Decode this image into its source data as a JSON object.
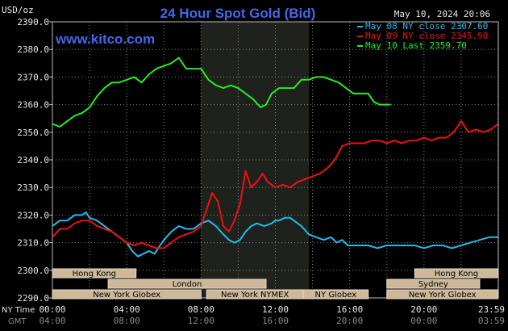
{
  "chart_data": {
    "type": "line",
    "title": "24 Hour Spot Gold (Bid)",
    "watermark": "www.kitco.com",
    "date_label": "May 10, 2024 20:06",
    "y_unit": "USD/oz",
    "ylim": [
      2290,
      2390
    ],
    "y_ticks": [
      "2390.0",
      "2380.0",
      "2370.0",
      "2360.0",
      "2350.0",
      "2340.0",
      "2330.0",
      "2320.0",
      "2310.0",
      "2300.0",
      "2290.0"
    ],
    "x_row1_label": "NY Time",
    "x_row2_label": "GMT",
    "x_ticks_ny": [
      "00:00",
      "04:00",
      "08:00",
      "12:00",
      "16:00",
      "20:00",
      "23:59"
    ],
    "x_ticks_gmt": [
      "04:00",
      "08:00",
      "12:00",
      "16:00",
      "20:00",
      "00:00",
      "03:59"
    ],
    "x_tick_hours": [
      0,
      4,
      8,
      12,
      16,
      20,
      23.983
    ],
    "xlim": [
      0,
      24
    ],
    "shaded_hours": [
      8,
      12,
      13.8
    ],
    "grid": true,
    "legend_position": "top-right",
    "series": [
      {
        "name": "May 08 NY close 2307.60",
        "color": "#22bbee",
        "x": [
          0,
          0.4,
          0.8,
          1.2,
          1.6,
          1.8,
          2.0,
          2.4,
          2.8,
          3.2,
          3.6,
          4.0,
          4.3,
          4.6,
          4.9,
          5.2,
          5.5,
          5.8,
          6.0,
          6.4,
          6.8,
          7.2,
          7.6,
          8.0,
          8.4,
          8.8,
          9.2,
          9.5,
          9.8,
          10.1,
          10.4,
          10.7,
          11.0,
          11.4,
          11.8,
          12.0,
          12.2,
          12.5,
          12.8,
          13.0,
          13.4,
          13.8,
          14.2,
          14.6,
          15.0,
          15.3,
          15.6,
          15.9,
          16.2,
          16.6,
          17.0,
          17.5,
          18.0,
          18.5,
          19.0,
          19.5,
          20.0,
          20.5,
          21.0,
          21.5,
          22.0,
          22.5,
          23.0,
          23.5,
          23.98
        ],
        "y": [
          2316,
          2318,
          2318,
          2320,
          2320,
          2321,
          2319,
          2318,
          2316,
          2314,
          2312,
          2310,
          2307,
          2305,
          2306,
          2307,
          2306,
          2309,
          2311,
          2314,
          2316,
          2315,
          2315,
          2317,
          2318,
          2316,
          2313,
          2311,
          2310,
          2311,
          2314,
          2316,
          2317,
          2316,
          2317,
          2318,
          2318,
          2319,
          2319,
          2318,
          2316,
          2313,
          2312,
          2311,
          2312,
          2310,
          2311,
          2309,
          2309,
          2309,
          2309,
          2308,
          2309,
          2309,
          2309,
          2309,
          2308,
          2309,
          2309,
          2308,
          2309,
          2310,
          2311,
          2312,
          2312
        ]
      },
      {
        "name": "May 09 NY close 2345.90",
        "color": "#ee1111",
        "x": [
          0,
          0.4,
          0.8,
          1.2,
          1.6,
          2.0,
          2.4,
          2.8,
          3.2,
          3.6,
          4.0,
          4.4,
          4.8,
          5.2,
          5.6,
          6.0,
          6.4,
          6.8,
          7.2,
          7.6,
          8.0,
          8.3,
          8.6,
          8.9,
          9.2,
          9.5,
          9.8,
          10.1,
          10.4,
          10.7,
          11.0,
          11.3,
          11.6,
          12.0,
          12.4,
          12.8,
          13.2,
          13.6,
          14.0,
          14.4,
          14.8,
          15.2,
          15.6,
          16.0,
          16.4,
          16.8,
          17.2,
          17.6,
          18.0,
          18.4,
          18.8,
          19.2,
          19.6,
          20.0,
          20.4,
          20.8,
          21.2,
          21.6,
          22.0,
          22.4,
          22.8,
          23.2,
          23.6,
          23.98
        ],
        "y": [
          2312,
          2315,
          2315,
          2317,
          2318,
          2318,
          2316,
          2315,
          2314,
          2312,
          2310,
          2309,
          2310,
          2309,
          2308,
          2308,
          2310,
          2312,
          2313,
          2314,
          2316,
          2322,
          2328,
          2325,
          2316,
          2314,
          2318,
          2324,
          2336,
          2330,
          2332,
          2335,
          2332,
          2330,
          2331,
          2330,
          2332,
          2333,
          2334,
          2335,
          2337,
          2340,
          2345,
          2346,
          2346,
          2346,
          2347,
          2347,
          2346,
          2347,
          2346,
          2347,
          2347,
          2348,
          2347,
          2348,
          2348,
          2350,
          2354,
          2350,
          2351,
          2350,
          2351,
          2353
        ]
      },
      {
        "name": "May 10 Last 2359.70",
        "color": "#22ee22",
        "x": [
          0,
          0.4,
          0.8,
          1.2,
          1.6,
          2.0,
          2.4,
          2.8,
          3.2,
          3.6,
          4.0,
          4.4,
          4.8,
          5.2,
          5.6,
          6.0,
          6.4,
          6.8,
          7.2,
          7.6,
          8.0,
          8.4,
          8.8,
          9.2,
          9.6,
          10.0,
          10.4,
          10.8,
          11.2,
          11.5,
          11.8,
          12.2,
          12.6,
          13.0,
          13.4,
          13.8,
          14.2,
          14.6,
          15.0,
          15.4,
          15.8,
          16.2,
          16.6,
          17.0,
          17.3,
          17.6,
          18.0,
          18.2
        ],
        "y": [
          2353,
          2352,
          2354,
          2356,
          2357,
          2359,
          2363,
          2366,
          2368,
          2368,
          2369,
          2370,
          2368,
          2371,
          2373,
          2374,
          2375,
          2377,
          2373,
          2373,
          2373,
          2369,
          2367,
          2366,
          2367,
          2366,
          2364,
          2362,
          2359,
          2360,
          2364,
          2366,
          2366,
          2366,
          2369,
          2369,
          2370,
          2370,
          2369,
          2368,
          2366,
          2364,
          2364,
          2364,
          2361,
          2360,
          2360,
          2360
        ]
      }
    ],
    "sessions": [
      {
        "label": "Hong Kong",
        "row": 0,
        "start": 0,
        "end": 4.5
      },
      {
        "label": "Hong Kong",
        "row": 0,
        "start": 19.5,
        "end": 23.98
      },
      {
        "label": "London",
        "row": 1,
        "start": 3.0,
        "end": 11.5
      },
      {
        "label": "Sydney",
        "row": 1,
        "start": 18.0,
        "end": 23.0
      },
      {
        "label": "New York Globex",
        "row": 2,
        "start": 0,
        "end": 8.0
      },
      {
        "label": "New York NYMEX",
        "row": 2,
        "start": 8.3,
        "end": 13.5
      },
      {
        "label": "NY Globex",
        "row": 2,
        "start": 13.5,
        "end": 17.0
      },
      {
        "label": "New York Globex",
        "row": 2,
        "start": 18.0,
        "end": 23.98
      }
    ],
    "colors": {
      "background": "#000000",
      "grid": "#888888",
      "shaded": "#1f221c",
      "title": "#4466ee",
      "watermark": "#4466ee",
      "axis_text": "#e8e8e8",
      "gmt_text": "#8a8a8a",
      "session_fill": "#cdb89a",
      "session_text": "#000000"
    }
  }
}
